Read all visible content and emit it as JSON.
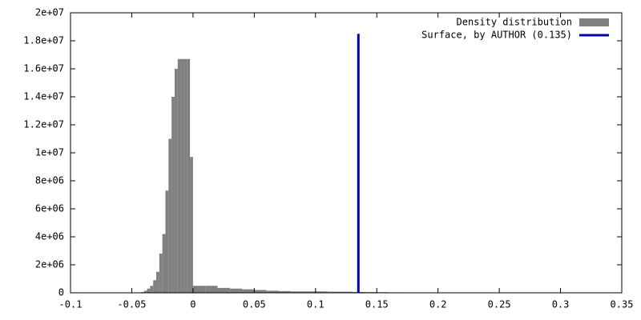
{
  "chart_data": {
    "type": "histogram",
    "bins": [
      -0.045,
      -0.0425,
      -0.04,
      -0.0375,
      -0.035,
      -0.0325,
      -0.03,
      -0.0275,
      -0.025,
      -0.0225,
      -0.02,
      -0.0175,
      -0.015,
      -0.0125,
      -0.01,
      -0.0075,
      -0.005,
      -0.0025,
      0,
      0.01,
      0.02,
      0.03,
      0.04,
      0.05,
      0.06,
      0.07,
      0.08,
      0.09,
      0.1,
      0.11,
      0.12,
      0.13,
      0.14,
      0.15,
      0.16,
      0.17
    ],
    "series": [
      {
        "name": "Density distribution",
        "color": "#808080",
        "values": [
          20000,
          50000,
          150000,
          300000,
          500000,
          900000,
          1500000,
          2800000,
          4200000,
          7300000,
          11000000,
          14000000,
          16000000,
          16700000,
          16700000,
          16700000,
          16700000,
          9700000,
          500000,
          500000,
          350000,
          300000,
          250000,
          200000,
          150000,
          120000,
          100000,
          100000,
          100000,
          80000,
          80000,
          60000,
          50000,
          40000,
          30000
        ]
      }
    ],
    "lines": [
      {
        "name": "Surface, by AUTHOR (0.135)",
        "color": "#0000a8",
        "x": 0.135,
        "top": 18500000
      }
    ],
    "xlim": [
      -0.1,
      0.35
    ],
    "xticks": [
      -0.1,
      -0.05,
      0,
      0.05,
      0.1,
      0.15,
      0.2,
      0.25,
      0.3,
      0.35
    ],
    "ylim": [
      0,
      20000000
    ],
    "yticks": [
      0,
      {
        "value": 2000000,
        "label": "2e+06"
      },
      {
        "value": 4000000,
        "label": "4e+06"
      },
      {
        "value": 6000000,
        "label": "6e+06"
      },
      {
        "value": 8000000,
        "label": "8e+06"
      },
      {
        "value": 10000000,
        "label": "1e+07"
      },
      {
        "value": 12000000,
        "label": "1.2e+07"
      },
      {
        "value": 14000000,
        "label": "1.4e+07"
      },
      {
        "value": 16000000,
        "label": "1.6e+07"
      },
      {
        "value": 18000000,
        "label": "1.8e+07"
      },
      {
        "value": 20000000,
        "label": "2e+07"
      }
    ],
    "legend": "top-right"
  }
}
